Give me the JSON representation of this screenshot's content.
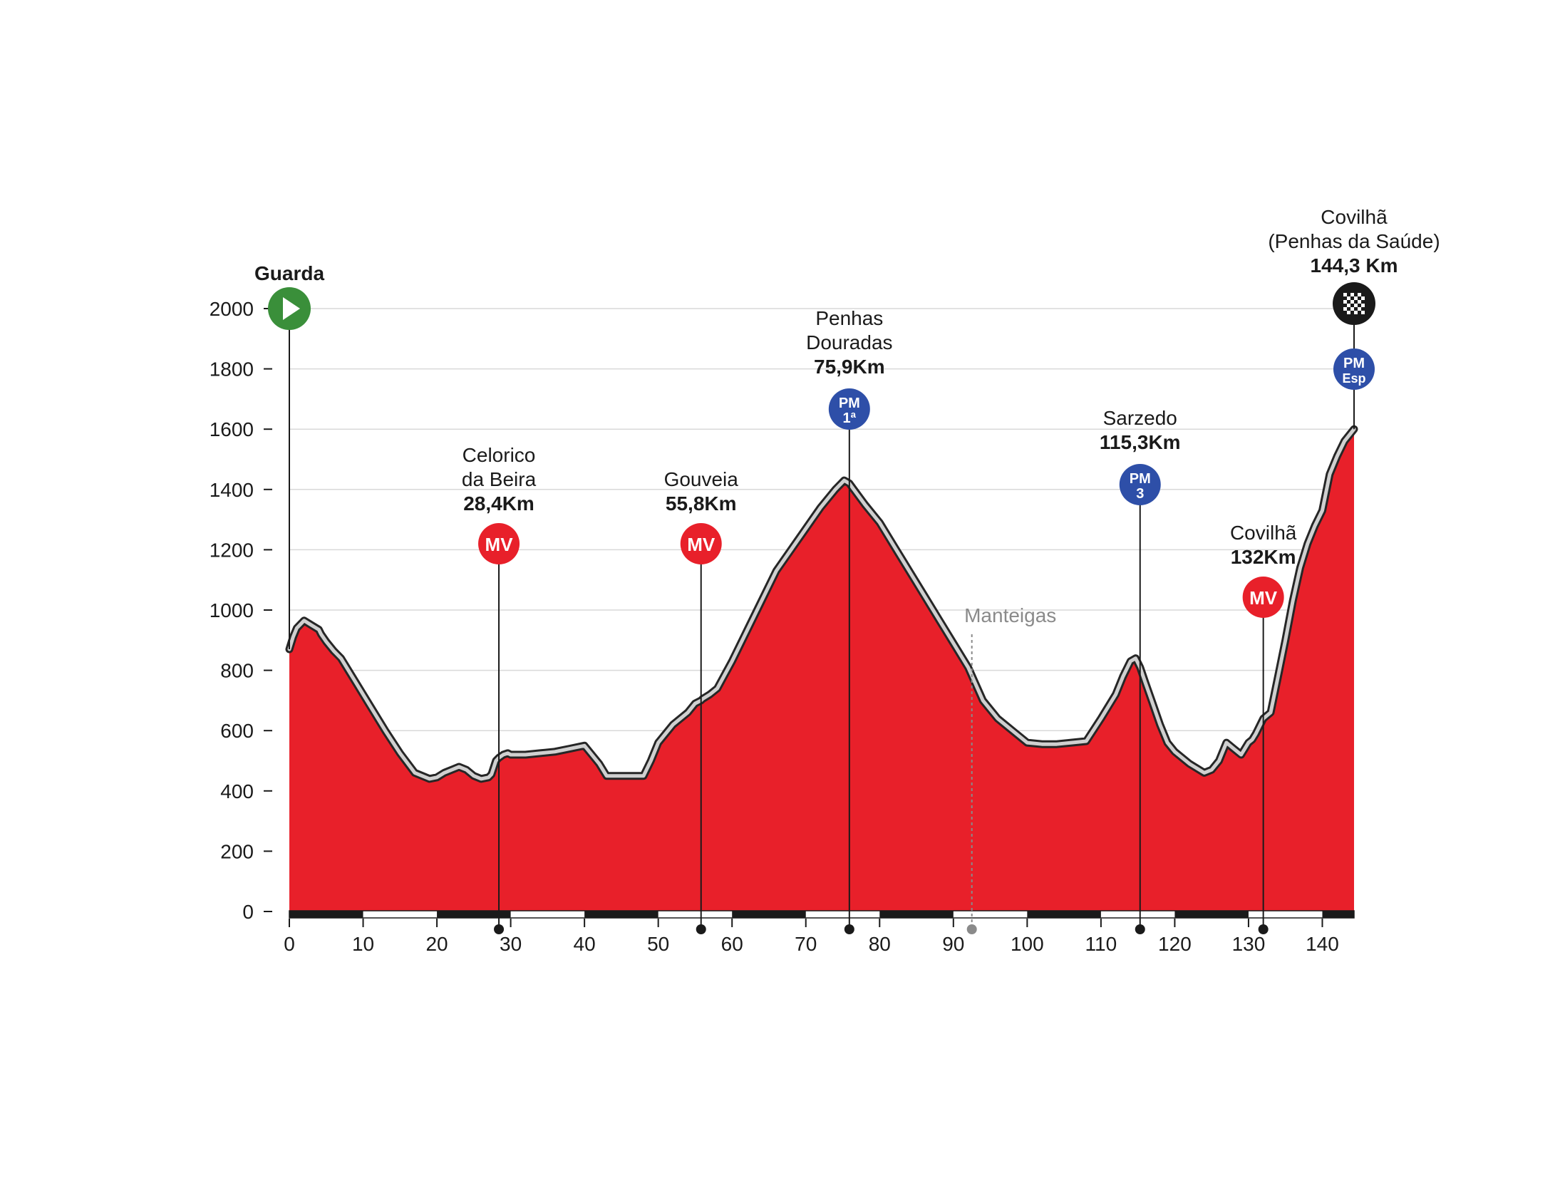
{
  "chart_data": {
    "type": "area",
    "title": "",
    "xlabel": "",
    "ylabel": "",
    "xlim": [
      0,
      144.3
    ],
    "ylim": [
      0,
      2000
    ],
    "x_ticks": [
      0,
      10,
      20,
      30,
      40,
      50,
      60,
      70,
      80,
      90,
      100,
      110,
      120,
      130,
      140
    ],
    "y_ticks": [
      0,
      200,
      400,
      600,
      800,
      1000,
      1200,
      1400,
      1600,
      1800,
      2000
    ],
    "grid": "horizontal",
    "colors": {
      "fill": "#e8202a",
      "outline": "#262626",
      "outline_halo": "#d0d0d0",
      "gridline": "#d9d9d9",
      "mv_badge": "#e8202a",
      "pm_badge": "#2e4fa8",
      "start_badge": "#3a8f3a",
      "finish_badge": "#1a1a1a",
      "intermediate_marker": "#8a8a8a"
    },
    "profile": {
      "x": [
        0,
        0.5,
        1,
        2,
        3,
        4,
        4.3,
        5,
        6,
        7,
        9,
        11,
        13,
        15,
        17,
        19,
        20,
        21,
        23,
        24,
        25,
        26,
        27,
        27.4,
        28,
        28.4,
        29,
        29.6,
        30,
        32,
        34,
        36,
        38,
        40,
        42,
        43,
        44,
        46,
        48,
        49,
        50,
        52,
        54,
        55,
        55.8,
        56,
        57,
        58,
        60,
        62,
        64,
        66,
        68,
        70,
        72,
        74,
        75.2,
        75.9,
        76.5,
        78,
        80,
        82,
        84,
        86,
        88,
        90,
        92,
        94,
        96,
        98,
        100,
        102,
        104,
        106,
        108,
        110,
        112,
        113,
        114,
        114.7,
        115.3,
        116,
        117,
        118,
        119,
        120,
        122,
        124,
        125,
        126,
        127,
        128,
        129,
        130,
        130.5,
        131,
        132,
        133,
        134,
        135,
        136,
        137,
        138,
        139,
        140,
        141,
        142,
        143,
        144.3
      ],
      "y": [
        870,
        910,
        940,
        965,
        950,
        935,
        920,
        895,
        865,
        840,
        760,
        680,
        600,
        525,
        460,
        440,
        445,
        460,
        480,
        470,
        450,
        440,
        445,
        455,
        500,
        510,
        520,
        525,
        520,
        520,
        525,
        530,
        540,
        550,
        490,
        450,
        450,
        450,
        450,
        500,
        560,
        620,
        660,
        690,
        700,
        705,
        720,
        740,
        830,
        930,
        1030,
        1130,
        1200,
        1270,
        1340,
        1400,
        1430,
        1420,
        1400,
        1350,
        1290,
        1210,
        1130,
        1050,
        970,
        890,
        810,
        700,
        640,
        600,
        560,
        555,
        555,
        560,
        565,
        640,
        720,
        780,
        830,
        840,
        810,
        760,
        690,
        620,
        560,
        530,
        490,
        460,
        470,
        500,
        560,
        540,
        520,
        560,
        570,
        590,
        640,
        660,
        780,
        900,
        1030,
        1140,
        1220,
        1280,
        1330,
        1450,
        1510,
        1560,
        1600
      ]
    },
    "distance_markers": [
      {
        "km": 28.4,
        "kind": "MV",
        "name": "Celorico\nda Beira",
        "distance_label": "28,4Km"
      },
      {
        "km": 55.8,
        "kind": "MV",
        "name": "Gouveia",
        "distance_label": "55,8Km"
      },
      {
        "km": 75.9,
        "kind": "PM",
        "category": "1ª",
        "name": "Penhas\nDouradas",
        "distance_label": "75,9Km"
      },
      {
        "km": 92.5,
        "kind": "intermediate",
        "name": "Manteigas"
      },
      {
        "km": 115.3,
        "kind": "PM",
        "category": "3",
        "name": "Sarzedo",
        "distance_label": "115,3Km"
      },
      {
        "km": 132,
        "kind": "MV",
        "name": "Covilhã",
        "distance_label": "132Km"
      },
      {
        "km": 144.3,
        "kind": "PM",
        "category": "Esp",
        "name": "Covilhã\n(Penhas da Saúde)",
        "distance_label": "144,3 Km"
      }
    ],
    "start": {
      "km": 0,
      "name": "Guarda"
    },
    "finish": {
      "km": 144.3
    }
  },
  "badge_text": {
    "mv": "MV",
    "pm": "PM"
  }
}
